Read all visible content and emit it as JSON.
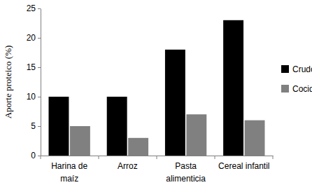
{
  "chart_data": {
    "type": "bar",
    "y_label": "Aporte proteico (%)",
    "categories": [
      "Harina de maíz",
      "Arroz",
      "Pasta alimenticia",
      "Cereal infantil"
    ],
    "series": [
      {
        "name": "Crudo",
        "color": "#000000",
        "values": [
          10,
          10,
          18,
          23
        ]
      },
      {
        "name": "Cocido",
        "color": "#808080",
        "values": [
          5,
          3,
          7,
          6
        ]
      }
    ],
    "ylim": [
      0,
      25
    ],
    "yticks": [
      0,
      5,
      10,
      15,
      20,
      25
    ],
    "grid": false,
    "legend": "right"
  }
}
